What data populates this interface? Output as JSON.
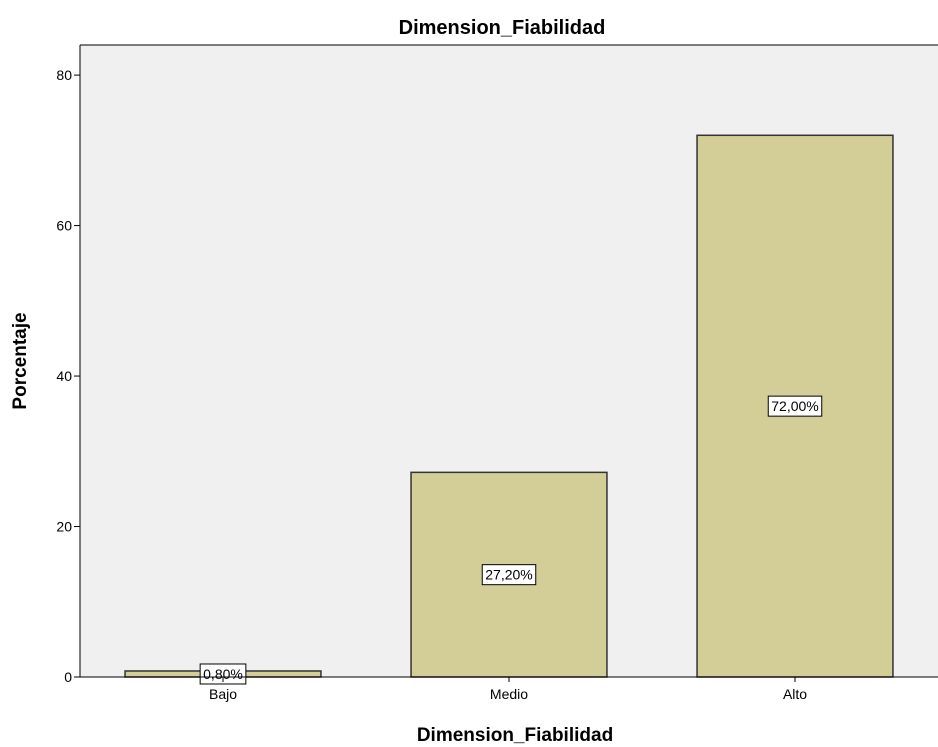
{
  "chart_data": {
    "type": "bar",
    "title": "Dimension_Fiabilidad",
    "xlabel": "Dimension_Fiabilidad",
    "ylabel": "Porcentaje",
    "categories": [
      "Bajo",
      "Medio",
      "Alto"
    ],
    "values": [
      0.8,
      27.2,
      72.0
    ],
    "data_labels": [
      "0,80%",
      "27,20%",
      "72,00%"
    ],
    "ylim": [
      0,
      84
    ],
    "yticks": [
      0,
      20,
      40,
      60,
      80
    ],
    "grid": false,
    "colors": {
      "bar_fill": "#d3ce97",
      "bar_stroke": "#333333",
      "plot_background": "#f0f0f0"
    }
  }
}
